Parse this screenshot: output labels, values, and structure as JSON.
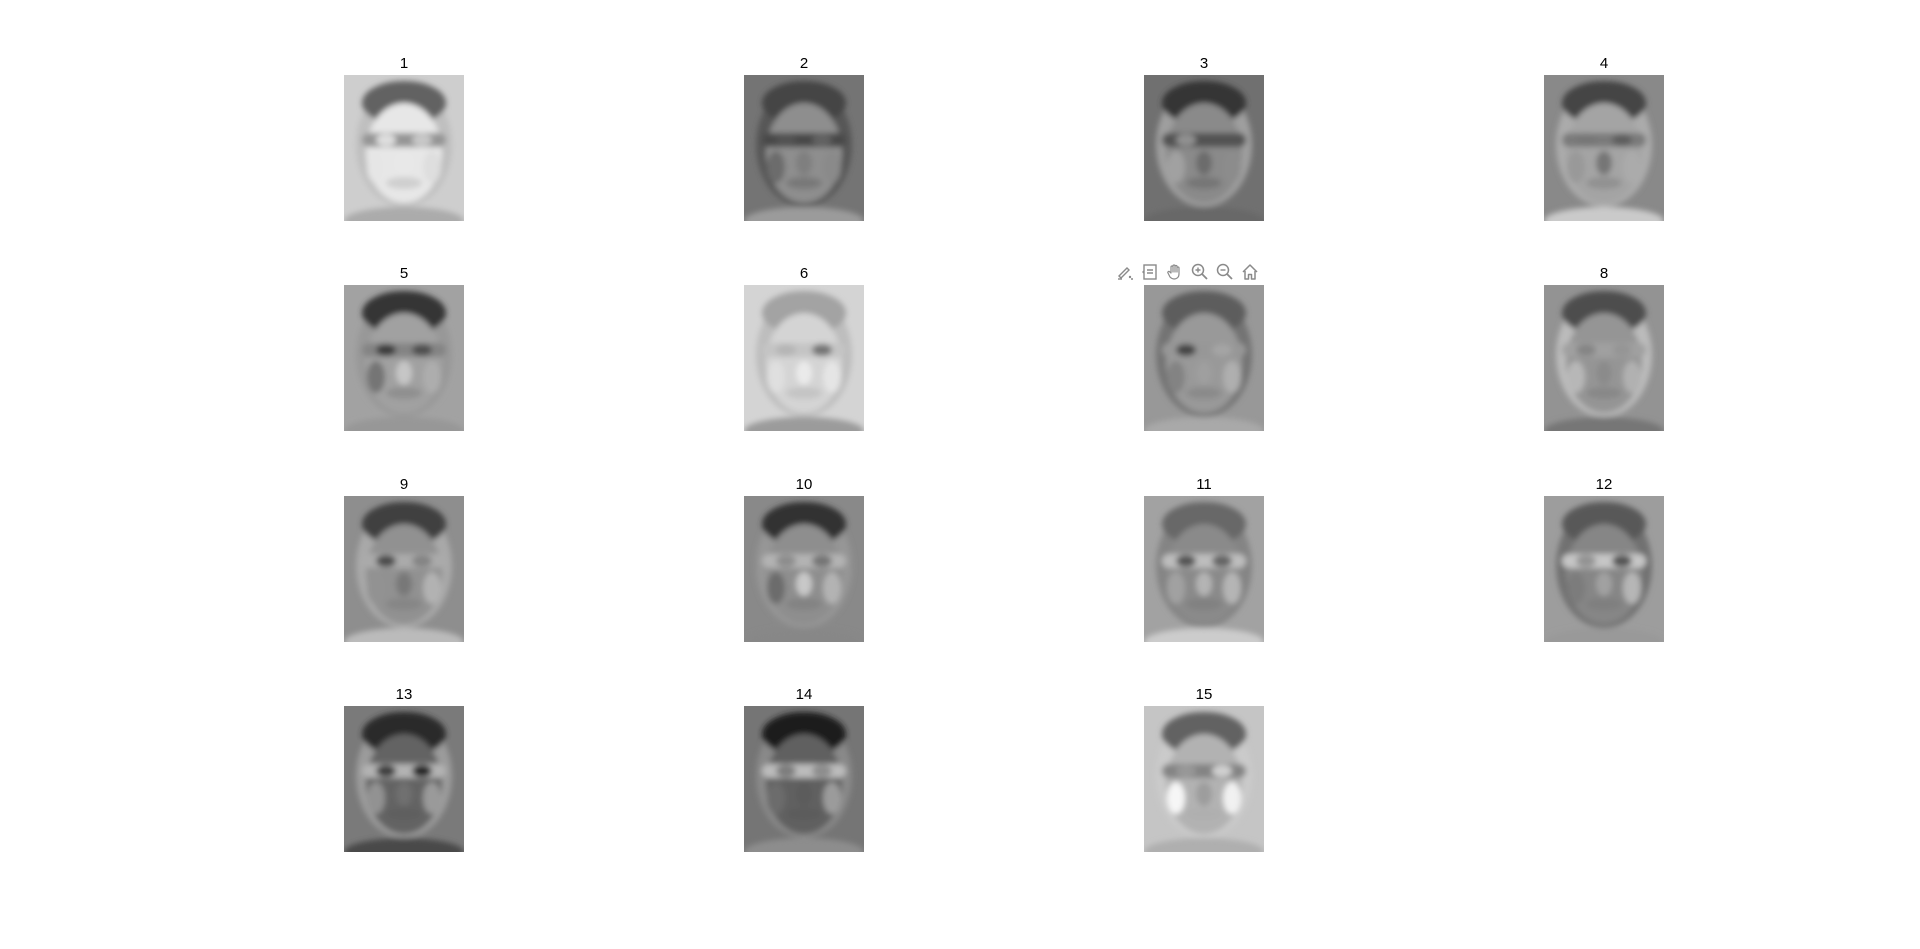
{
  "figure": {
    "subplots": [
      {
        "title": "1",
        "tone": "light",
        "seed": 1
      },
      {
        "title": "2",
        "tone": "dark",
        "seed": 2
      },
      {
        "title": "3",
        "tone": "dark",
        "seed": 3
      },
      {
        "title": "4",
        "tone": "mid",
        "seed": 4
      },
      {
        "title": "5",
        "tone": "mid",
        "seed": 5
      },
      {
        "title": "6",
        "tone": "light",
        "seed": 6
      },
      {
        "title": "",
        "tone": "mid",
        "seed": 7
      },
      {
        "title": "8",
        "tone": "mid",
        "seed": 8
      },
      {
        "title": "9",
        "tone": "mid",
        "seed": 9
      },
      {
        "title": "10",
        "tone": "mid",
        "seed": 10
      },
      {
        "title": "11",
        "tone": "mid",
        "seed": 11
      },
      {
        "title": "12",
        "tone": "mid",
        "seed": 12
      },
      {
        "title": "13",
        "tone": "dark",
        "seed": 13
      },
      {
        "title": "14",
        "tone": "dark",
        "seed": 14
      },
      {
        "title": "15",
        "tone": "light",
        "seed": 15
      }
    ]
  },
  "toolbar": {
    "buttons": [
      {
        "name": "brush-icon"
      },
      {
        "name": "datatip-icon"
      },
      {
        "name": "pan-hand-icon"
      },
      {
        "name": "zoom-in-icon"
      },
      {
        "name": "zoom-out-icon"
      },
      {
        "name": "home-icon"
      }
    ]
  }
}
